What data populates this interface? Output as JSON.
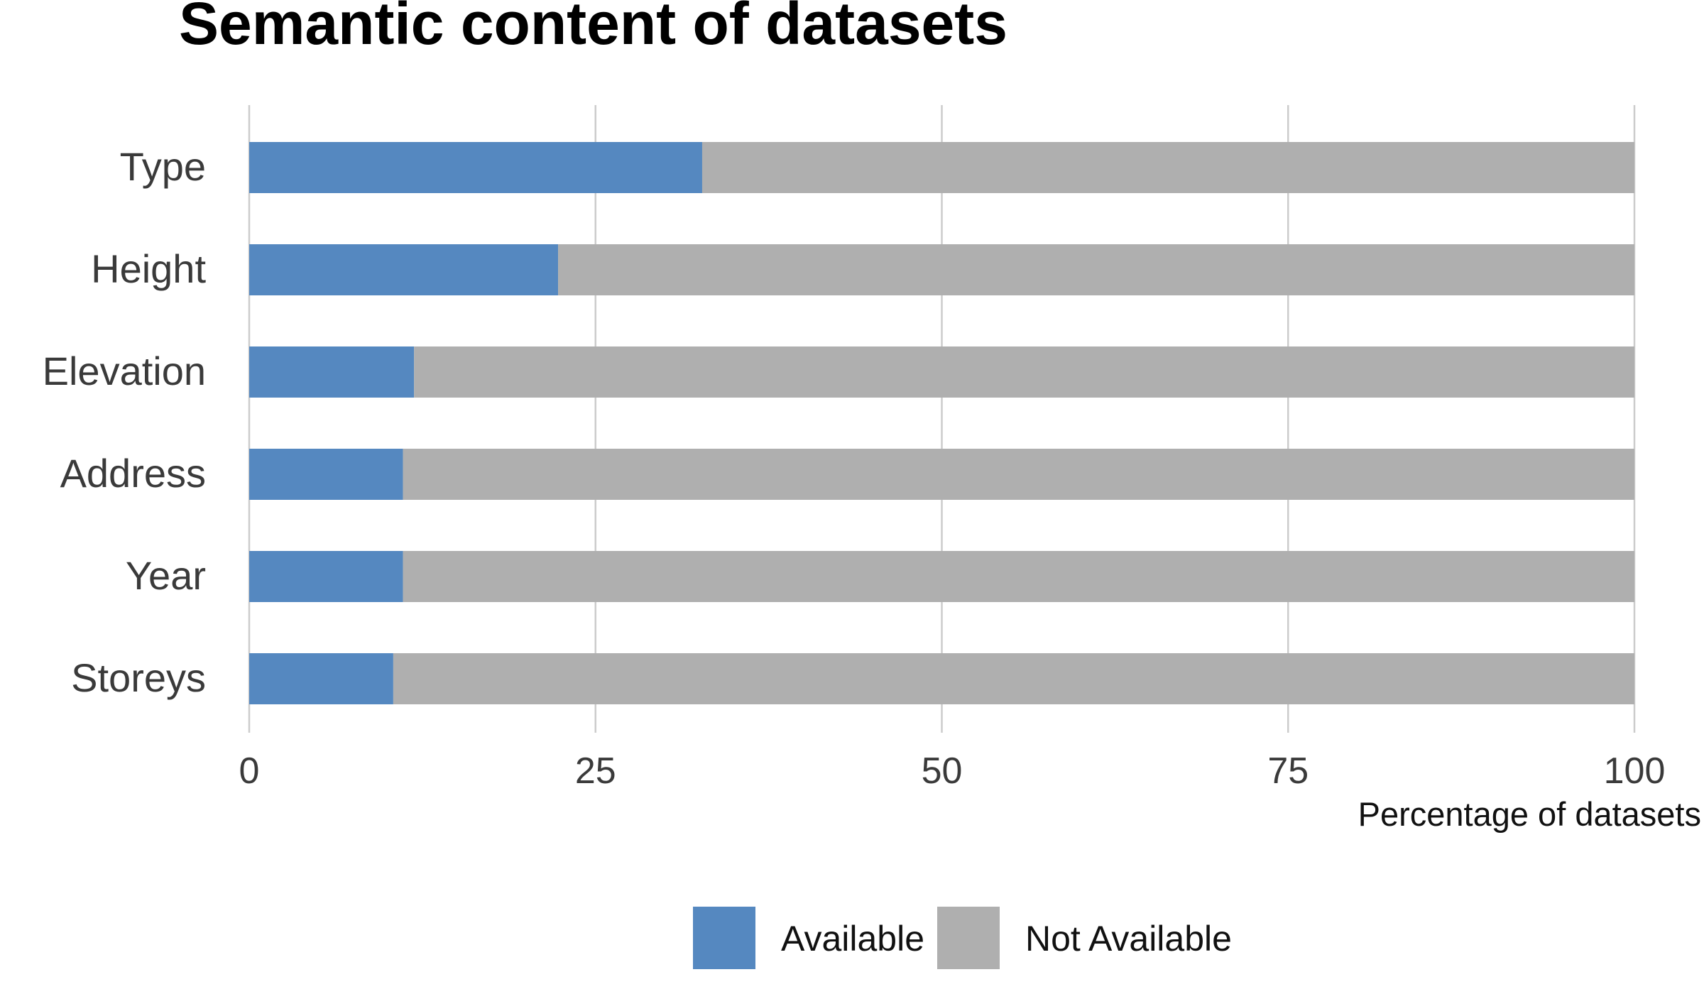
{
  "chart_data": {
    "type": "bar",
    "orientation": "horizontal",
    "stacked": true,
    "title": "Semantic content of datasets",
    "xlabel": "Percentage of datasets",
    "ylabel": "",
    "xlim": [
      0,
      100
    ],
    "xticks": [
      0,
      25,
      50,
      75,
      100
    ],
    "grid": true,
    "categories": [
      "Type",
      "Height",
      "Elevation",
      "Address",
      "Year",
      "Storeys"
    ],
    "series": [
      {
        "name": "Available",
        "color": "#5588c0",
        "values": [
          32.7,
          22.3,
          11.9,
          11.1,
          11.1,
          10.4
        ]
      },
      {
        "name": "Not Available",
        "color": "#afafaf",
        "values": [
          67.3,
          77.7,
          88.1,
          88.9,
          88.9,
          89.6
        ]
      }
    ],
    "legend_position": "bottom"
  }
}
